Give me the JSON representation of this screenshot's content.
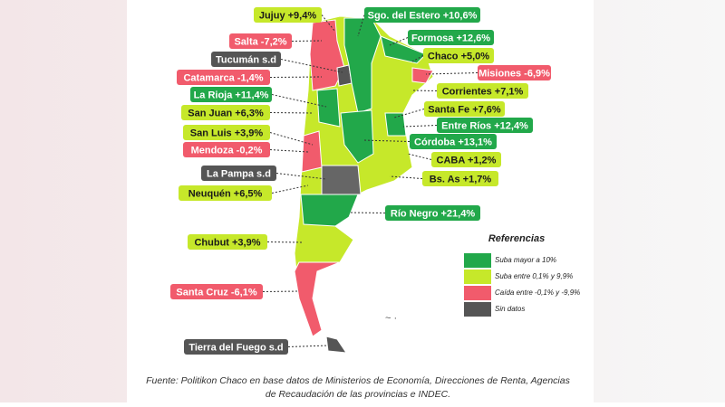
{
  "labels": [
    "Jujuy +9,4%",
    "Sgo. del Estero +10,6%",
    "Salta -7,2%",
    "Formosa +12,6%",
    "Tucumán s.d",
    "Chaco +5,0%",
    "Catamarca -1,4%",
    "Misiones -6,9%",
    "La Rioja +11,4%",
    "Corrientes +7,1%",
    "San Juan +6,3%",
    "Santa Fe +7,6%",
    "San Luis +3,9%",
    "Entre Ríos +12,4%",
    "Mendoza -0,2%",
    "Córdoba +13,1%",
    "CABA +1,2%",
    "La Pampa s.d",
    "Bs. As +1,7%",
    "Neuquén +6,5%",
    "Río Negro +21,4%",
    "Chubut +3,9%",
    "Santa Cruz -6,1%",
    "Tierra del Fuego s.d"
  ],
  "legend": {
    "title": "Referencias",
    "items": [
      "Suba mayor a 10%",
      "Suba entre 0,1% y 9,9%",
      "Caída entre -0,1% y -9,9%",
      "Sin datos"
    ]
  },
  "source": [
    "Fuente: Politikon Chaco en base datos de Ministerios de Economía, Direcciones de Renta, Agencias",
    "de Recaudación de las provincias e INDEC."
  ]
}
